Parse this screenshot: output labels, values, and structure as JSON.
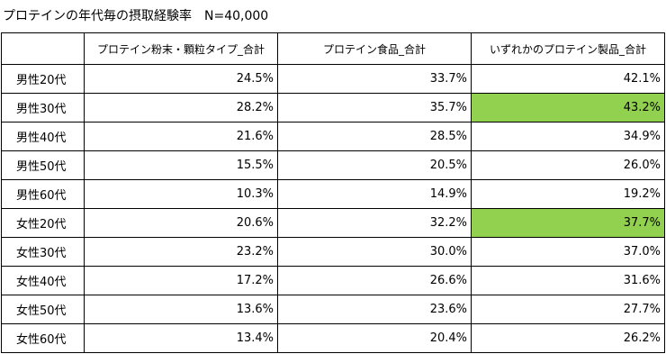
{
  "title": "プロテインの年代毎の摂取経験率　N=40,000",
  "table": {
    "headers": [
      "",
      "プロテイン粉末・顆粒タイプ_合計",
      "プロテイン食品_合計",
      "いずれかのプロテイン製品_合計"
    ],
    "highlight_color": "#92d050",
    "rows": [
      {
        "label": "男性20代",
        "values": [
          "24.5%",
          "33.7%",
          "42.1%"
        ],
        "highlight": [
          false,
          false,
          false
        ]
      },
      {
        "label": "男性30代",
        "values": [
          "28.2%",
          "35.7%",
          "43.2%"
        ],
        "highlight": [
          false,
          false,
          true
        ]
      },
      {
        "label": "男性40代",
        "values": [
          "21.6%",
          "28.5%",
          "34.9%"
        ],
        "highlight": [
          false,
          false,
          false
        ]
      },
      {
        "label": "男性50代",
        "values": [
          "15.5%",
          "20.5%",
          "26.0%"
        ],
        "highlight": [
          false,
          false,
          false
        ]
      },
      {
        "label": "男性60代",
        "values": [
          "10.3%",
          "14.9%",
          "19.2%"
        ],
        "highlight": [
          false,
          false,
          false
        ]
      },
      {
        "label": "女性20代",
        "values": [
          "20.6%",
          "32.2%",
          "37.7%"
        ],
        "highlight": [
          false,
          false,
          true
        ]
      },
      {
        "label": "女性30代",
        "values": [
          "23.2%",
          "30.0%",
          "37.0%"
        ],
        "highlight": [
          false,
          false,
          false
        ]
      },
      {
        "label": "女性40代",
        "values": [
          "17.2%",
          "26.6%",
          "31.6%"
        ],
        "highlight": [
          false,
          false,
          false
        ]
      },
      {
        "label": "女性50代",
        "values": [
          "13.6%",
          "23.6%",
          "27.7%"
        ],
        "highlight": [
          false,
          false,
          false
        ]
      },
      {
        "label": "女性60代",
        "values": [
          "13.4%",
          "20.4%",
          "26.2%"
        ],
        "highlight": [
          false,
          false,
          false
        ]
      }
    ]
  }
}
